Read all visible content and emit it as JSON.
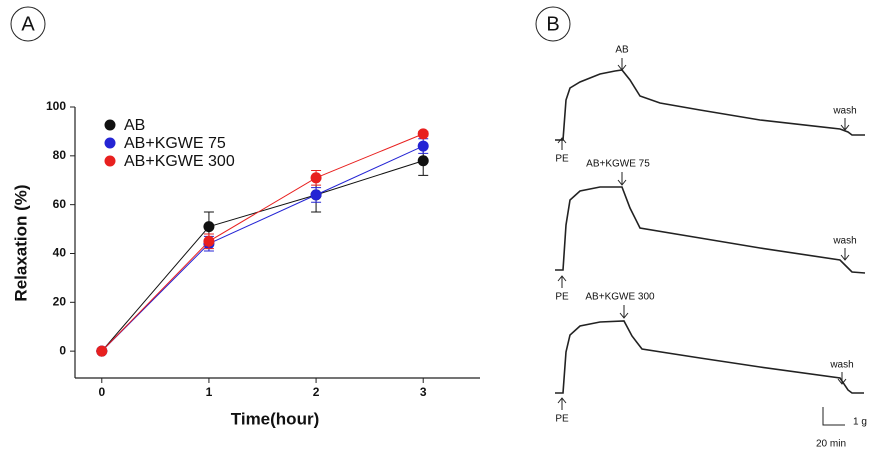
{
  "chart_data": {
    "type": "line",
    "panel_label": "A",
    "x_label": "Time(hour)",
    "y_label": "Relaxation (%)",
    "x": [
      0,
      1,
      2,
      3
    ],
    "series": [
      {
        "name": "AB",
        "color": "#111111",
        "values": [
          0,
          51,
          64,
          78
        ],
        "errors": [
          0,
          6,
          7,
          6
        ]
      },
      {
        "name": "AB+KGWE 75",
        "color": "#2424d4",
        "values": [
          0,
          44,
          64,
          84
        ],
        "errors": [
          0,
          3,
          3,
          3
        ]
      },
      {
        "name": "AB+KGWE 300",
        "color": "#e8201f",
        "values": [
          0,
          45,
          71,
          89
        ],
        "errors": [
          0,
          3,
          3,
          1
        ]
      }
    ],
    "xlim": [
      -0.25,
      3.53
    ],
    "ylim": [
      -11,
      100
    ],
    "xticks": [
      0,
      1,
      2,
      3
    ],
    "yticks": [
      0,
      20,
      40,
      60,
      80,
      100
    ],
    "legend": "upper left"
  },
  "panel_b": {
    "panel_label": "B",
    "traces": [
      {
        "label": "AB",
        "start": "PE",
        "end": "wash"
      },
      {
        "label": "AB+KGWE 75",
        "start": "PE",
        "end": "wash"
      },
      {
        "label": "AB+KGWE 300",
        "start": "PE",
        "end": "wash"
      }
    ],
    "scale_y": "1 g",
    "scale_x": "20 min"
  }
}
